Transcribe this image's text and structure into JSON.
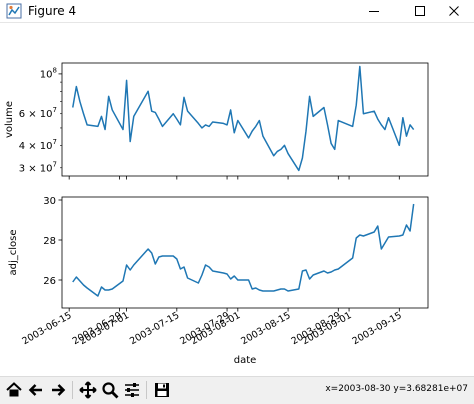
{
  "window": {
    "title": "Figure 4"
  },
  "toolbar": {
    "buttons": [
      "home-icon",
      "back-icon",
      "forward-icon",
      "pan-icon",
      "zoom-icon",
      "configure-icon",
      "save-icon"
    ],
    "coords": "x=2003-08-30 y=3.68281e+07"
  },
  "colors": {
    "line": "#1f77b4"
  },
  "chart_data": [
    {
      "type": "line",
      "title": "",
      "xlabel": "",
      "ylabel": "volume",
      "yscale": "log",
      "ylim": [
        27000000,
        115000000
      ],
      "xlim": [
        "2003-06-13",
        "2003-09-23"
      ],
      "ytick_labels": [
        {
          "value": 100000000,
          "base": "10",
          "exp": "8"
        },
        {
          "value": 60000000,
          "base": "6 × 10",
          "exp": "7"
        },
        {
          "value": 40000000,
          "base": "4 × 10",
          "exp": "7"
        },
        {
          "value": 30000000,
          "base": "3 × 10",
          "exp": "7"
        }
      ],
      "series": [
        {
          "x": [
            "2003-06-16",
            "2003-06-17",
            "2003-06-18",
            "2003-06-19",
            "2003-06-20",
            "2003-06-23",
            "2003-06-24",
            "2003-06-25",
            "2003-06-26",
            "2003-06-27",
            "2003-06-30",
            "2003-07-01",
            "2003-07-02",
            "2003-07-03",
            "2003-07-07",
            "2003-07-08",
            "2003-07-09",
            "2003-07-10",
            "2003-07-11",
            "2003-07-14",
            "2003-07-15",
            "2003-07-16",
            "2003-07-17",
            "2003-07-18",
            "2003-07-21",
            "2003-07-22",
            "2003-07-23",
            "2003-07-24",
            "2003-07-25",
            "2003-07-28",
            "2003-07-29",
            "2003-07-30",
            "2003-07-31",
            "2003-08-01",
            "2003-08-04",
            "2003-08-05",
            "2003-08-06",
            "2003-08-07",
            "2003-08-08",
            "2003-08-11",
            "2003-08-12",
            "2003-08-13",
            "2003-08-14",
            "2003-08-15",
            "2003-08-18",
            "2003-08-19",
            "2003-08-20",
            "2003-08-21",
            "2003-08-22",
            "2003-08-25",
            "2003-08-26",
            "2003-08-27",
            "2003-08-28",
            "2003-08-29",
            "2003-09-02",
            "2003-09-03",
            "2003-09-04",
            "2003-09-05",
            "2003-09-08",
            "2003-09-09",
            "2003-09-10",
            "2003-09-11",
            "2003-09-12",
            "2003-09-15",
            "2003-09-16",
            "2003-09-17",
            "2003-09-18",
            "2003-09-19"
          ],
          "values": [
            65000000,
            85000000,
            70000000,
            60000000,
            52000000,
            51000000,
            58000000,
            49000000,
            75000000,
            63000000,
            49000000,
            92000000,
            42000000,
            58000000,
            80000000,
            62000000,
            61000000,
            56000000,
            51000000,
            60000000,
            56000000,
            52000000,
            74000000,
            62000000,
            53000000,
            50000000,
            52000000,
            51000000,
            54000000,
            53000000,
            52000000,
            63000000,
            47000000,
            55000000,
            44000000,
            48000000,
            51000000,
            55000000,
            45000000,
            35000000,
            37000000,
            38000000,
            40000000,
            36000000,
            29000000,
            34000000,
            48000000,
            75000000,
            58000000,
            65000000,
            52000000,
            41000000,
            38000000,
            55000000,
            51000000,
            67000000,
            110000000,
            60000000,
            62000000,
            56000000,
            52000000,
            49000000,
            57000000,
            40000000,
            57000000,
            45000000,
            52000000,
            49000000
          ]
        }
      ]
    },
    {
      "type": "line",
      "title": "",
      "xlabel": "date",
      "ylabel": "adj_close",
      "ylim": [
        24.6,
        30.15
      ],
      "yticks": [
        26,
        28,
        30
      ],
      "xlim": [
        "2003-06-13",
        "2003-09-23"
      ],
      "xticks": [
        "2003-06-15",
        "2003-06-29",
        "2003-07-01",
        "2003-07-15",
        "2003-07-29",
        "2003-08-01",
        "2003-08-15",
        "2003-08-29",
        "2003-09-01",
        "2003-09-15"
      ],
      "series": [
        {
          "x": [
            "2003-06-16",
            "2003-06-17",
            "2003-06-18",
            "2003-06-19",
            "2003-06-20",
            "2003-06-23",
            "2003-06-24",
            "2003-06-25",
            "2003-06-26",
            "2003-06-27",
            "2003-06-30",
            "2003-07-01",
            "2003-07-02",
            "2003-07-03",
            "2003-07-07",
            "2003-07-08",
            "2003-07-09",
            "2003-07-10",
            "2003-07-11",
            "2003-07-14",
            "2003-07-15",
            "2003-07-16",
            "2003-07-17",
            "2003-07-18",
            "2003-07-21",
            "2003-07-22",
            "2003-07-23",
            "2003-07-24",
            "2003-07-25",
            "2003-07-28",
            "2003-07-29",
            "2003-07-30",
            "2003-07-31",
            "2003-08-01",
            "2003-08-04",
            "2003-08-05",
            "2003-08-06",
            "2003-08-07",
            "2003-08-08",
            "2003-08-11",
            "2003-08-12",
            "2003-08-13",
            "2003-08-14",
            "2003-08-15",
            "2003-08-18",
            "2003-08-19",
            "2003-08-20",
            "2003-08-21",
            "2003-08-22",
            "2003-08-25",
            "2003-08-26",
            "2003-08-27",
            "2003-08-28",
            "2003-08-29",
            "2003-09-02",
            "2003-09-03",
            "2003-09-04",
            "2003-09-05",
            "2003-09-08",
            "2003-09-09",
            "2003-09-10",
            "2003-09-11",
            "2003-09-12",
            "2003-09-15",
            "2003-09-16",
            "2003-09-17",
            "2003-09-18",
            "2003-09-19"
          ],
          "values": [
            25.9,
            26.15,
            25.95,
            25.75,
            25.6,
            25.2,
            25.65,
            25.5,
            25.5,
            25.55,
            25.95,
            26.75,
            26.5,
            26.75,
            27.55,
            27.35,
            26.8,
            27.15,
            27.2,
            27.2,
            27.05,
            26.55,
            26.65,
            26.1,
            25.85,
            26.25,
            26.75,
            26.65,
            26.45,
            26.35,
            26.3,
            26.05,
            26.2,
            26.0,
            26.0,
            25.55,
            25.6,
            25.5,
            25.45,
            25.45,
            25.5,
            25.55,
            25.55,
            25.45,
            25.55,
            26.45,
            26.5,
            26.05,
            26.25,
            26.45,
            26.35,
            26.4,
            26.5,
            26.55,
            27.1,
            28.1,
            28.25,
            28.2,
            28.4,
            28.7,
            27.55,
            27.85,
            28.15,
            28.2,
            28.25,
            28.75,
            28.45,
            29.8
          ]
        }
      ]
    }
  ]
}
